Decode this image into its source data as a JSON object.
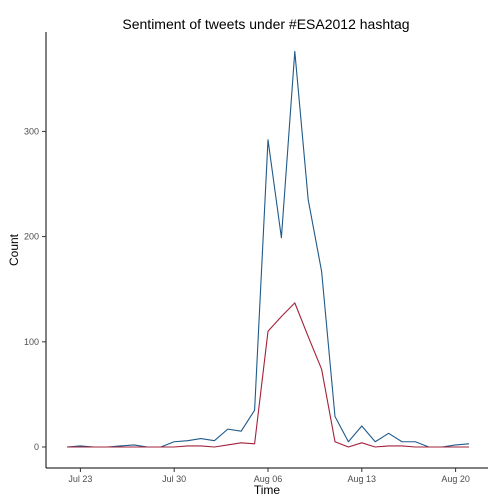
{
  "chart_data": {
    "type": "line",
    "title": "Sentiment of tweets under #ESA2012 hashtag",
    "xlabel": "Time",
    "ylabel": "Count",
    "x_ticks": [
      "Jul 23",
      "Jul 30",
      "Aug 06",
      "Aug 13",
      "Aug 20"
    ],
    "y_ticks": [
      "0",
      "100",
      "200",
      "300"
    ],
    "ylim": [
      -10,
      395
    ],
    "grid": false,
    "legend": "none",
    "x": [
      "2012-07-22",
      "2012-07-23",
      "2012-07-24",
      "2012-07-25",
      "2012-07-26",
      "2012-07-27",
      "2012-07-28",
      "2012-07-29",
      "2012-07-30",
      "2012-07-31",
      "2012-08-01",
      "2012-08-02",
      "2012-08-03",
      "2012-08-04",
      "2012-08-05",
      "2012-08-06",
      "2012-08-07",
      "2012-08-08",
      "2012-08-09",
      "2012-08-10",
      "2012-08-11",
      "2012-08-12",
      "2012-08-13",
      "2012-08-14",
      "2012-08-15",
      "2012-08-16",
      "2012-08-17",
      "2012-08-18",
      "2012-08-19",
      "2012-08-20",
      "2012-08-21"
    ],
    "series": [
      {
        "color": "#1f5a8a",
        "values": [
          0,
          1,
          0,
          0,
          1,
          2,
          0,
          0,
          5,
          6,
          8,
          6,
          17,
          15,
          35,
          292,
          199,
          376,
          235,
          167,
          29,
          5,
          20,
          5,
          13,
          5,
          5,
          0,
          0,
          2,
          3
        ]
      },
      {
        "color": "#a2213a",
        "values": [
          0,
          0,
          0,
          0,
          0,
          0,
          0,
          0,
          0,
          1,
          1,
          0,
          2,
          4,
          3,
          110,
          124,
          137,
          105,
          74,
          5,
          0,
          4,
          0,
          1,
          1,
          0,
          0,
          0,
          0,
          0
        ]
      }
    ]
  }
}
